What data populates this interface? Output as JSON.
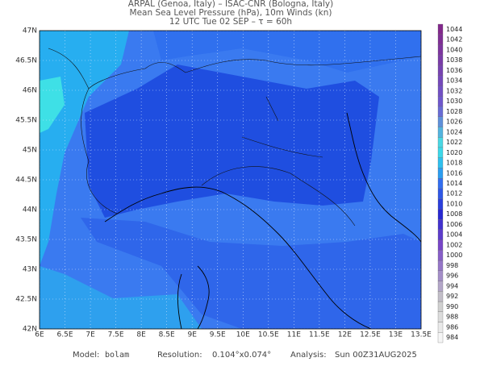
{
  "header": {
    "lines": [
      "ARPAL (Genoa, Italy)  –  ISAC-CNR (Bologna, Italy)",
      "Mean Sea Level Pressure (hPa), 10m Winds (kn)",
      "12 UTC Tue 02 SEP  –  τ = 60h"
    ]
  },
  "map": {
    "lon_labels": [
      "6E",
      "6.5E",
      "7E",
      "7.5E",
      "8E",
      "8.5E",
      "9E",
      "9.5E",
      "10E",
      "10.5E",
      "11E",
      "11.5E",
      "12E",
      "12.5E",
      "13E",
      "13.5E"
    ],
    "lat_labels": [
      "42N",
      "42.5N",
      "43N",
      "43.5N",
      "44N",
      "44.5N",
      "45N",
      "45.5N",
      "46N",
      "46.5N",
      "47N"
    ]
  },
  "colorbar": {
    "levels": [
      984,
      986,
      988,
      990,
      992,
      994,
      996,
      998,
      1000,
      1002,
      1004,
      1006,
      1008,
      1010,
      1012,
      1014,
      1016,
      1018,
      1020,
      1022,
      1024,
      1026,
      1028,
      1030,
      1032,
      1034,
      1036,
      1038,
      1040,
      1042,
      1044
    ]
  },
  "footer": {
    "model_label": "Model:",
    "model": "bolam",
    "resolution_label": "Resolution:",
    "resolution": "0.104°x0.074°",
    "analysis_label": "Analysis:",
    "analysis": "Sun 00Z31AUG2025"
  }
}
